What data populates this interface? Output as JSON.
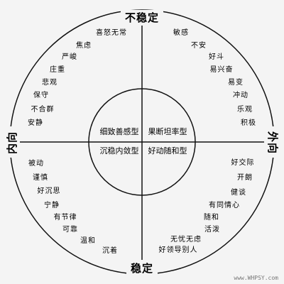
{
  "axes": {
    "top": "不稳定",
    "bottom": "稳定",
    "left": "内向",
    "right": "外向"
  },
  "quadrants": {
    "top_left": [
      "喜怒无常",
      "焦虑",
      "严峻",
      "庄重",
      "悲观",
      "保守",
      "不合群",
      "安静"
    ],
    "top_right": [
      "敏感",
      "不安",
      "好斗",
      "易兴奋",
      "易变",
      "冲动",
      "乐观",
      "积极"
    ],
    "bottom_left": [
      "被动",
      "谨慎",
      "好沉思",
      "宁静",
      "有节律",
      "可靠",
      "温和",
      "沉着"
    ],
    "bottom_right": [
      "好交际",
      "开朗",
      "健谈",
      "有同情心",
      "随和",
      "活泼",
      "无忧无虑",
      "好领导别人"
    ]
  },
  "types": {
    "top_left": "细致善感型",
    "top_right": "果断坦率型",
    "bottom_left": "沉稳内敛型",
    "bottom_right": "好动随和型"
  },
  "watermark": "www.WHPSY.com",
  "colors": {
    "background": "#f4f4f4",
    "line": "#111111",
    "text": "#111111"
  }
}
